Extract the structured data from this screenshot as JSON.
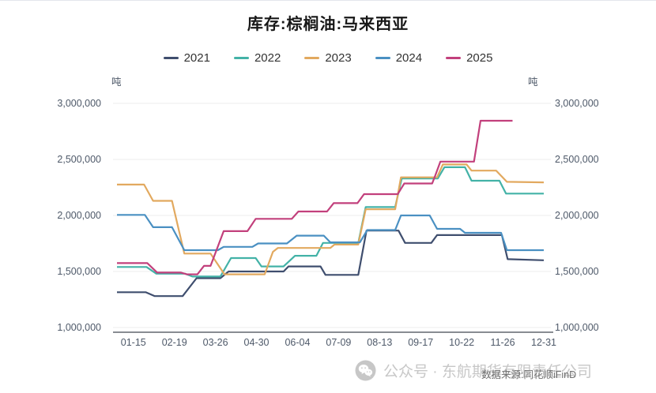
{
  "title": "库存:棕榈油:马来西亚",
  "unit_left": "吨",
  "unit_right": "吨",
  "footer": {
    "watermark": "公众号 · 东航期货有限责任公司",
    "source": "数据来源:同花顺iFinD"
  },
  "chart_data": {
    "type": "line",
    "title": "库存:棕榈油:马来西亚",
    "ylabel": "吨",
    "ylim": [
      1000000,
      3000000
    ],
    "grid": true,
    "legend_position": "top",
    "x_axis": {
      "tick_labels": [
        "01-15",
        "02-19",
        "03-26",
        "04-30",
        "06-04",
        "07-09",
        "08-13",
        "09-17",
        "10-22",
        "11-26",
        "12-31"
      ],
      "tick_weeks": [
        2,
        7,
        12,
        17,
        22,
        27,
        32,
        37,
        42,
        47,
        52
      ],
      "weeks_domain": [
        0,
        52
      ]
    },
    "y_axis": {
      "tick_labels": [
        "3,000,000",
        "2,500,000",
        "2,000,000",
        "1,500,000",
        "1,000,000"
      ],
      "tick_values": [
        3000000,
        2500000,
        2000000,
        1500000,
        1000000
      ]
    },
    "series": [
      {
        "name": "2021",
        "color": "#3f4e6e",
        "points": [
          [
            0,
            1315000
          ],
          [
            3.5,
            1315000
          ],
          [
            4.6,
            1280000
          ],
          [
            8,
            1280000
          ],
          [
            9.7,
            1440000
          ],
          [
            12.6,
            1440000
          ],
          [
            13.6,
            1500000
          ],
          [
            20.3,
            1500000
          ],
          [
            20.9,
            1545000
          ],
          [
            24.8,
            1545000
          ],
          [
            25.4,
            1470000
          ],
          [
            29.4,
            1470000
          ],
          [
            30.4,
            1865000
          ],
          [
            34.3,
            1865000
          ],
          [
            35.1,
            1755000
          ],
          [
            38.3,
            1755000
          ],
          [
            39.0,
            1825000
          ],
          [
            46.9,
            1825000
          ],
          [
            47.6,
            1610000
          ],
          [
            52,
            1600000
          ]
        ]
      },
      {
        "name": "2022",
        "color": "#43b2a7",
        "points": [
          [
            0,
            1540000
          ],
          [
            3.6,
            1540000
          ],
          [
            4.8,
            1480000
          ],
          [
            8.3,
            1480000
          ],
          [
            9.2,
            1455000
          ],
          [
            12.6,
            1455000
          ],
          [
            13.9,
            1620000
          ],
          [
            16.9,
            1620000
          ],
          [
            17.6,
            1545000
          ],
          [
            20.3,
            1545000
          ],
          [
            21.7,
            1640000
          ],
          [
            24.3,
            1640000
          ],
          [
            25.1,
            1755000
          ],
          [
            29.4,
            1755000
          ],
          [
            30.3,
            2075000
          ],
          [
            33.9,
            2075000
          ],
          [
            34.7,
            2330000
          ],
          [
            39.1,
            2330000
          ],
          [
            39.9,
            2430000
          ],
          [
            42.4,
            2430000
          ],
          [
            43.2,
            2310000
          ],
          [
            46.6,
            2310000
          ],
          [
            47.4,
            2195000
          ],
          [
            52,
            2195000
          ]
        ]
      },
      {
        "name": "2023",
        "color": "#e2a95f",
        "points": [
          [
            0,
            2275000
          ],
          [
            3.3,
            2275000
          ],
          [
            4.4,
            2130000
          ],
          [
            6.7,
            2130000
          ],
          [
            8.2,
            1660000
          ],
          [
            11.4,
            1660000
          ],
          [
            13.1,
            1475000
          ],
          [
            18.0,
            1475000
          ],
          [
            19.0,
            1675000
          ],
          [
            19.6,
            1710000
          ],
          [
            26.0,
            1710000
          ],
          [
            26.5,
            1740000
          ],
          [
            29.4,
            1740000
          ],
          [
            30.3,
            2055000
          ],
          [
            33.9,
            2055000
          ],
          [
            34.6,
            2340000
          ],
          [
            39.0,
            2340000
          ],
          [
            39.7,
            2455000
          ],
          [
            42.6,
            2455000
          ],
          [
            43.2,
            2400000
          ],
          [
            46.2,
            2400000
          ],
          [
            47.5,
            2300000
          ],
          [
            52,
            2295000
          ]
        ]
      },
      {
        "name": "2024",
        "color": "#4a90c2",
        "points": [
          [
            0,
            2005000
          ],
          [
            3.4,
            2005000
          ],
          [
            4.4,
            1895000
          ],
          [
            6.7,
            1895000
          ],
          [
            8.2,
            1690000
          ],
          [
            12.3,
            1690000
          ],
          [
            13.0,
            1720000
          ],
          [
            16.5,
            1720000
          ],
          [
            17.2,
            1750000
          ],
          [
            20.7,
            1750000
          ],
          [
            21.9,
            1820000
          ],
          [
            25.2,
            1820000
          ],
          [
            26.0,
            1760000
          ],
          [
            29.6,
            1760000
          ],
          [
            30.5,
            1870000
          ],
          [
            33.9,
            1870000
          ],
          [
            34.6,
            2000000
          ],
          [
            38.1,
            2000000
          ],
          [
            39.0,
            1880000
          ],
          [
            41.8,
            1880000
          ],
          [
            42.4,
            1845000
          ],
          [
            46.8,
            1845000
          ],
          [
            47.5,
            1690000
          ],
          [
            52,
            1690000
          ]
        ]
      },
      {
        "name": "2025",
        "color": "#c2407c",
        "points": [
          [
            0,
            1575000
          ],
          [
            3.7,
            1575000
          ],
          [
            4.9,
            1490000
          ],
          [
            7.8,
            1490000
          ],
          [
            8.5,
            1475000
          ],
          [
            9.8,
            1475000
          ],
          [
            10.6,
            1550000
          ],
          [
            11.4,
            1550000
          ],
          [
            13.0,
            1860000
          ],
          [
            15.9,
            1860000
          ],
          [
            16.9,
            1970000
          ],
          [
            21.3,
            1970000
          ],
          [
            22.1,
            2035000
          ],
          [
            25.6,
            2035000
          ],
          [
            26.4,
            2110000
          ],
          [
            29.3,
            2110000
          ],
          [
            30.1,
            2190000
          ],
          [
            34.2,
            2190000
          ],
          [
            35.0,
            2285000
          ],
          [
            38.4,
            2285000
          ],
          [
            38.8,
            2360000
          ],
          [
            39.4,
            2480000
          ],
          [
            43.5,
            2480000
          ],
          [
            44.3,
            2845000
          ],
          [
            48.2,
            2845000
          ]
        ]
      }
    ]
  }
}
